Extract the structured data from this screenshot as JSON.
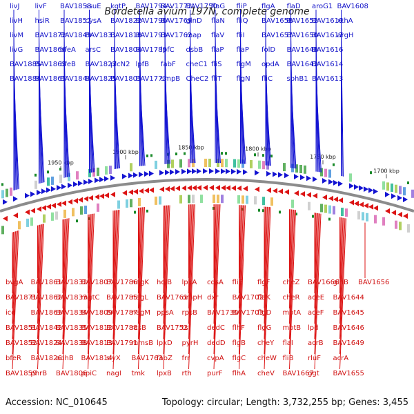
{
  "title": "Bordetella avium 197N, complete genome",
  "footer": {
    "accession": "Accession: NC_010645",
    "summary": "Topology: circular; Length: 3,732,255 bp; Genes: 3,455"
  },
  "colors": {
    "forward_strand": "#1414d2",
    "reverse_strand": "#dc1414",
    "backbone": "#8c8c8c",
    "cog_marker": "#1a8a2a"
  },
  "scale_labels": [
    "1950 kbp",
    "1900 kbp",
    "1850 kbp",
    "1800 kbp",
    "1750 kbp",
    "1700 kbp"
  ],
  "top_genes": [
    "livJ",
    "livH",
    "livM",
    "livG",
    "BAV1885",
    "BAV1884",
    "livF",
    "hsiR",
    "BAV1872",
    "BAV1866",
    "BAV1865",
    "BAV1867",
    "BAV1858",
    "BAV1857",
    "BAV1849",
    "bfeA",
    "bfeB",
    "BAV1844",
    "ssuE",
    "cysA",
    "BAV1831",
    "arsC",
    "BAV1827",
    "BAV1825",
    "kgtP",
    "BAV1822",
    "BAV1818",
    "BAV1804",
    "plcN2",
    "BAV1801",
    "BAV1794",
    "BAV1790",
    "BAV1793",
    "BAV1789",
    "lpfB",
    "BAV1773",
    "BAV1772",
    "BAV1769",
    "BAV1762",
    "lpfC",
    "fabF",
    "smpB",
    "BAV1750",
    "glnD",
    "map",
    "dsbB",
    "cheC1",
    "CheC2",
    "flaG",
    "flaN",
    "flaV",
    "flaP",
    "fliS",
    "fliT",
    "fliP",
    "fliQ",
    "fliI",
    "flaP",
    "flgM",
    "flgN",
    "flgA",
    "BAV1658",
    "BAV1657",
    "folD",
    "opdA",
    "fliC",
    "flaD",
    "BAV1652",
    "BAV1650",
    "BAV1648",
    "BAV1642",
    "sphB1",
    "aroG1",
    "BAV1619",
    "BAV1617",
    "BAV1616",
    "BAV1614",
    "BAV1613",
    "BAV1608",
    "xthA",
    "argH"
  ],
  "bottom_genes": [
    "bvgA",
    "BAV1871",
    "icd",
    "BAV1851",
    "BAV1852",
    "bfeR",
    "BAV1859",
    "BAV1861",
    "BAV1862",
    "BAV1863",
    "BAV1842",
    "BAV1824",
    "BAV1826",
    "phrB",
    "BAV1832",
    "BAV1833",
    "BAV1834",
    "BAV1835",
    "BAV1838",
    "adhB",
    "BAV1806",
    "BAV1807",
    "mgtC",
    "BAV1809",
    "BAV1812",
    "BAV1813",
    "BAV1814",
    "ppiC",
    "BAV1786",
    "BAV1785",
    "BAV1787",
    "BAV1788",
    "BAV1791",
    "slyX",
    "nagI",
    "nagK",
    "nagL",
    "nagM",
    "rcsB",
    "mmsB",
    "BAV1763",
    "tmk",
    "holB",
    "BAV1761",
    "ppsA",
    "BAV1752",
    "lpxD",
    "fabZ",
    "lpxB",
    "lpxA",
    "ompH",
    "rpsB",
    "tsf",
    "pyrH",
    "frr",
    "rth",
    "cdsA",
    "dxr",
    "BAV1730",
    "dedC",
    "dedD",
    "cvpA",
    "purF",
    "fliE",
    "BAV1702",
    "BAV1703",
    "flhF",
    "flgB",
    "flgC",
    "flhA",
    "flgF",
    "flaK",
    "flgD",
    "flgG",
    "cheY",
    "cheW",
    "cheV",
    "cheZ",
    "cheR",
    "motA",
    "motB",
    "flaI",
    "fliB",
    "BAV1667",
    "BAV1666",
    "aceE",
    "aceF",
    "lpd",
    "acrB",
    "rluF",
    "ggt",
    "glnB",
    "BAV1644",
    "BAV1645",
    "BAV1646",
    "BAV1649",
    "acrA",
    "BAV1655",
    "BAV1656"
  ]
}
